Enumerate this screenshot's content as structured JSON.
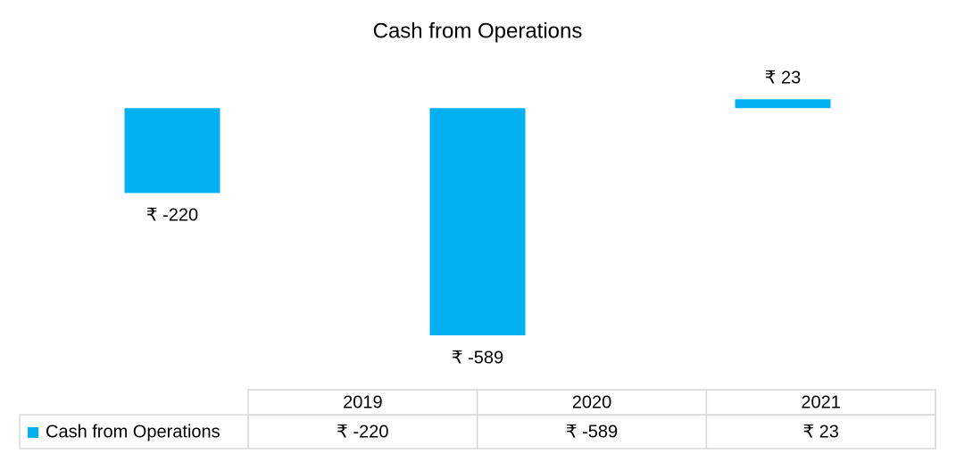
{
  "chart_data": {
    "type": "bar",
    "title": "Cash from Operations",
    "categories": [
      "2019",
      "2020",
      "2021"
    ],
    "series": [
      {
        "name": "Cash from Operations",
        "color": "#00b0f0",
        "values": [
          -220,
          -589,
          23
        ],
        "value_labels": [
          "₹ -220",
          "₹ -589",
          "₹ 23"
        ]
      }
    ],
    "ylim": [
      -700,
      100
    ],
    "data_table": true
  }
}
